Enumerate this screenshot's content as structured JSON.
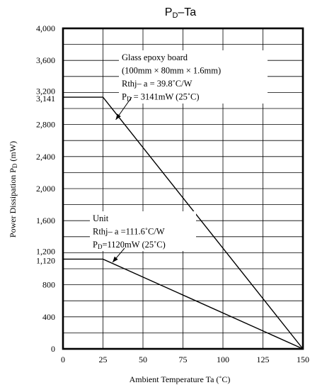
{
  "chart_data": {
    "type": "line",
    "title_main": "P",
    "title_sub": "D",
    "title_rest": "–Ta",
    "xlabel": "Ambient Temperature Ta (˚C)",
    "ylabel_main": "Power Dissipation  P",
    "ylabel_sub": "D",
    "ylabel_rest": " (mW)",
    "xlim": [
      0,
      150
    ],
    "ylim": [
      0,
      4000
    ],
    "x_ticks": [
      0,
      25,
      50,
      75,
      100,
      125,
      150
    ],
    "x_tick_labels": [
      "0",
      "25",
      "50",
      "75",
      "100",
      "125",
      "150"
    ],
    "y_ticks": [
      0,
      400,
      800,
      1120,
      1200,
      1600,
      2000,
      2400,
      2800,
      3141,
      3200,
      3600,
      4000
    ],
    "y_tick_labels": [
      "0",
      "400",
      "800",
      "1,120",
      "1,200",
      "1,600",
      "2,000",
      "2,400",
      "2,800",
      "3,141",
      "3,200",
      "3,600",
      "4,000"
    ],
    "x_grid": [
      25,
      50,
      75,
      100,
      125
    ],
    "y_grid": [
      200,
      400,
      600,
      800,
      1000,
      1200,
      1400,
      1600,
      1800,
      2000,
      2200,
      2400,
      2600,
      2800,
      3000,
      3200,
      3400,
      3600,
      3800
    ],
    "grid": true,
    "series": [
      {
        "x": [
          0,
          25,
          150
        ],
        "y": [
          3141,
          3141,
          0
        ]
      },
      {
        "x": [
          0,
          25,
          150
        ],
        "y": [
          1120,
          1120,
          0
        ]
      }
    ],
    "annotations": [
      {
        "lines": [
          {
            "text": "Glass epoxy board"
          },
          {
            "text": "(100mm × 80mm × 1.6mm)"
          },
          {
            "text": "Rthj– a = 39.8˚C/W"
          },
          {
            "pre": "P",
            "sub": "D",
            "post": " = 3141mW (25˚C)"
          }
        ],
        "target": [
          33,
          2860
        ]
      },
      {
        "lines": [
          {
            "text": "Unit"
          },
          {
            "text": "Rthj– a =111.6˚C/W"
          },
          {
            "pre": "P",
            "sub": "D",
            "post": "=1120mW (25˚C)"
          }
        ],
        "target": [
          31,
          1080
        ]
      }
    ]
  }
}
